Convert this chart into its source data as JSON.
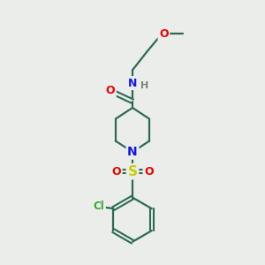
{
  "bg_color": "#eaede9",
  "bond_color": "#2d6b57",
  "atom_colors": {
    "O": "#ee0000",
    "N": "#1414ee",
    "S": "#cccc00",
    "Cl": "#33aa33",
    "H": "#778877",
    "C": "#2d6b57"
  },
  "figsize": [
    3.0,
    3.0
  ],
  "dpi": 100
}
